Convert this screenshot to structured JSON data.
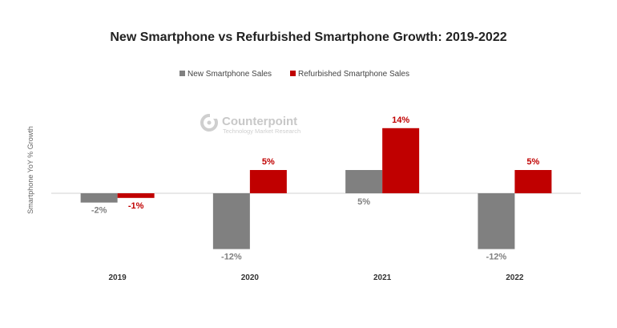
{
  "chart_data": {
    "type": "bar",
    "title": "New Smartphone vs Refurbished Smartphone Growth: 2019-2022",
    "xlabel": "",
    "ylabel": "Smartphone YoY % Growth",
    "categories": [
      "2019",
      "2020",
      "2021",
      "2022"
    ],
    "series": [
      {
        "name": "New Smartphone Sales",
        "color": "#808080",
        "label_color": "#808080",
        "values": [
          -2,
          -12,
          5,
          -12
        ],
        "labels": [
          "-2%",
          "-12%",
          "5%",
          "-12%"
        ]
      },
      {
        "name": "Refurbished Smartphone Sales",
        "color": "#c00000",
        "label_color": "#c00000",
        "values": [
          -1,
          5,
          14,
          5
        ],
        "labels": [
          "-1%",
          "5%",
          "14%",
          "5%"
        ]
      }
    ],
    "ylim": [
      -12,
      14
    ],
    "grid": false,
    "legend_position": "top-center"
  },
  "watermark": {
    "brand": "Counterpoint",
    "tagline": "Technology Market Research",
    "icon": "counterpoint-logo-icon"
  }
}
